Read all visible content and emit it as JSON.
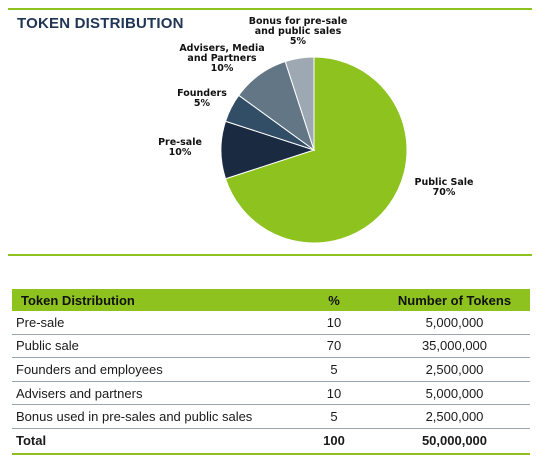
{
  "header": {
    "title": "TOKEN DISTRIBUTION"
  },
  "chart_data": {
    "type": "pie",
    "start_angle_deg": 0,
    "direction": "clockwise",
    "slices": [
      {
        "label": [
          "Public Sale",
          "70%"
        ],
        "value": 70,
        "color": "#8dc21f"
      },
      {
        "label": [
          "Pre-sale",
          "10%"
        ],
        "value": 10,
        "color": "#1a2a40"
      },
      {
        "label": [
          "Founders",
          "5%"
        ],
        "value": 5,
        "color": "#324e66"
      },
      {
        "label": [
          "Advisers, Media",
          "and Partners",
          "10%"
        ],
        "value": 10,
        "color": "#627686"
      },
      {
        "label": [
          "Bonus for pre-sale",
          "and public sales",
          "5%"
        ],
        "value": 5,
        "color": "#9ea8b3"
      }
    ]
  },
  "table": {
    "headers": [
      "Token Distribution",
      "%",
      "Number of Tokens"
    ],
    "rows": [
      [
        "Pre-sale",
        "10",
        "5,000,000"
      ],
      [
        "Public sale",
        "70",
        "35,000,000"
      ],
      [
        "Founders and employees",
        "5",
        "2,500,000"
      ],
      [
        "Advisers and partners",
        "10",
        "5,000,000"
      ],
      [
        "Bonus used in pre-sales and public sales",
        "5",
        "2,500,000"
      ]
    ],
    "total": [
      "Total",
      "100",
      "50,000,000"
    ]
  }
}
